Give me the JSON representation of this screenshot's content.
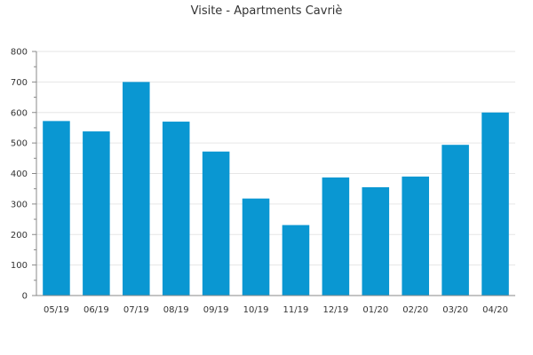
{
  "chart_data": {
    "type": "bar",
    "title": "Visite - Apartments Cavriè",
    "xlabel": "",
    "ylabel": "",
    "categories": [
      "05/19",
      "06/19",
      "07/19",
      "08/19",
      "09/19",
      "10/19",
      "11/19",
      "12/19",
      "01/20",
      "02/20",
      "03/20",
      "04/20"
    ],
    "values": [
      572,
      538,
      700,
      570,
      472,
      318,
      231,
      387,
      355,
      390,
      494,
      600
    ],
    "ylim": [
      0,
      800
    ],
    "yticks": [
      0,
      100,
      200,
      300,
      400,
      500,
      600,
      700,
      800
    ],
    "grid": true,
    "bar_color": "#0a97d2",
    "grid_color": "#e6e6e6",
    "axis_color": "#888888"
  }
}
